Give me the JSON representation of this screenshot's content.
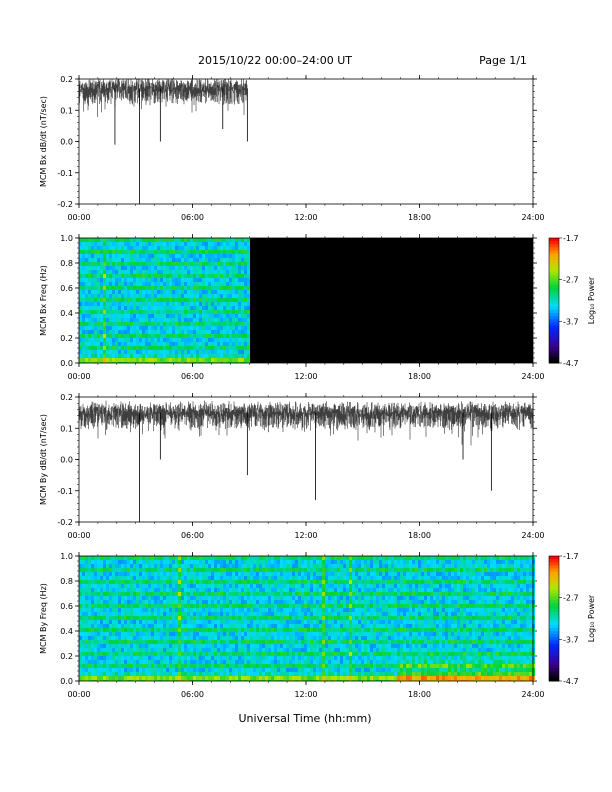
{
  "header": {
    "title": "2015/10/22  00:00–24:00 UT",
    "page": "Page 1/1"
  },
  "xlabel": "Universal Time (hh:mm)",
  "x_ticks": [
    "00:00",
    "06:00",
    "12:00",
    "18:00",
    "24:00"
  ],
  "colorbar": {
    "label": "Log₁₀ Power",
    "ticks": [
      "-1.7",
      "-2.7",
      "-3.7",
      "-4.7"
    ],
    "range": [
      -4.7,
      -1.7
    ]
  },
  "chart_data": [
    {
      "type": "line",
      "ylabel": "MCM Bx dB/dt (nT/sec)",
      "xlim_hours": [
        0,
        24
      ],
      "ylim": [
        -0.2,
        0.2
      ],
      "y_ticks": [
        "0.2",
        "0.1",
        "0.0",
        "-0.1",
        "-0.2"
      ],
      "data_end_hours": 8.9,
      "baseline": 0.17,
      "spikes": [
        {
          "x_hours": 1.9,
          "y": -0.01
        },
        {
          "x_hours": 3.2,
          "y": -0.2
        },
        {
          "x_hours": 4.3,
          "y": 0.0
        },
        {
          "x_hours": 7.6,
          "y": 0.04
        },
        {
          "x_hours": 8.9,
          "y": 0.0
        }
      ]
    },
    {
      "type": "heatmap",
      "ylabel": "MCM Bx Freq (Hz)",
      "xlim_hours": [
        0,
        24
      ],
      "ylim": [
        0.0,
        1.0
      ],
      "y_ticks": [
        "1.0",
        "0.8",
        "0.6",
        "0.4",
        "0.2",
        "0.0"
      ],
      "data_end_hours": 8.9,
      "no_data_color": "#000000"
    },
    {
      "type": "line",
      "ylabel": "MCM By dB/dt (nT/sec)",
      "xlim_hours": [
        0,
        24
      ],
      "ylim": [
        -0.2,
        0.2
      ],
      "y_ticks": [
        "0.2",
        "0.1",
        "0.0",
        "-0.1",
        "-0.2"
      ],
      "data_end_hours": 24,
      "baseline": 0.15,
      "spikes": [
        {
          "x_hours": 3.2,
          "y": -0.2
        },
        {
          "x_hours": 4.3,
          "y": 0.0
        },
        {
          "x_hours": 8.9,
          "y": -0.05
        },
        {
          "x_hours": 12.5,
          "y": -0.13
        },
        {
          "x_hours": 20.3,
          "y": 0.0
        },
        {
          "x_hours": 21.8,
          "y": -0.1
        }
      ]
    },
    {
      "type": "heatmap",
      "ylabel": "MCM By Freq (Hz)",
      "xlim_hours": [
        0,
        24
      ],
      "ylim": [
        0.0,
        1.0
      ],
      "y_ticks": [
        "1.0",
        "0.8",
        "0.6",
        "0.4",
        "0.2",
        "0.0"
      ],
      "data_end_hours": 24,
      "no_data_color": "#000000"
    }
  ]
}
